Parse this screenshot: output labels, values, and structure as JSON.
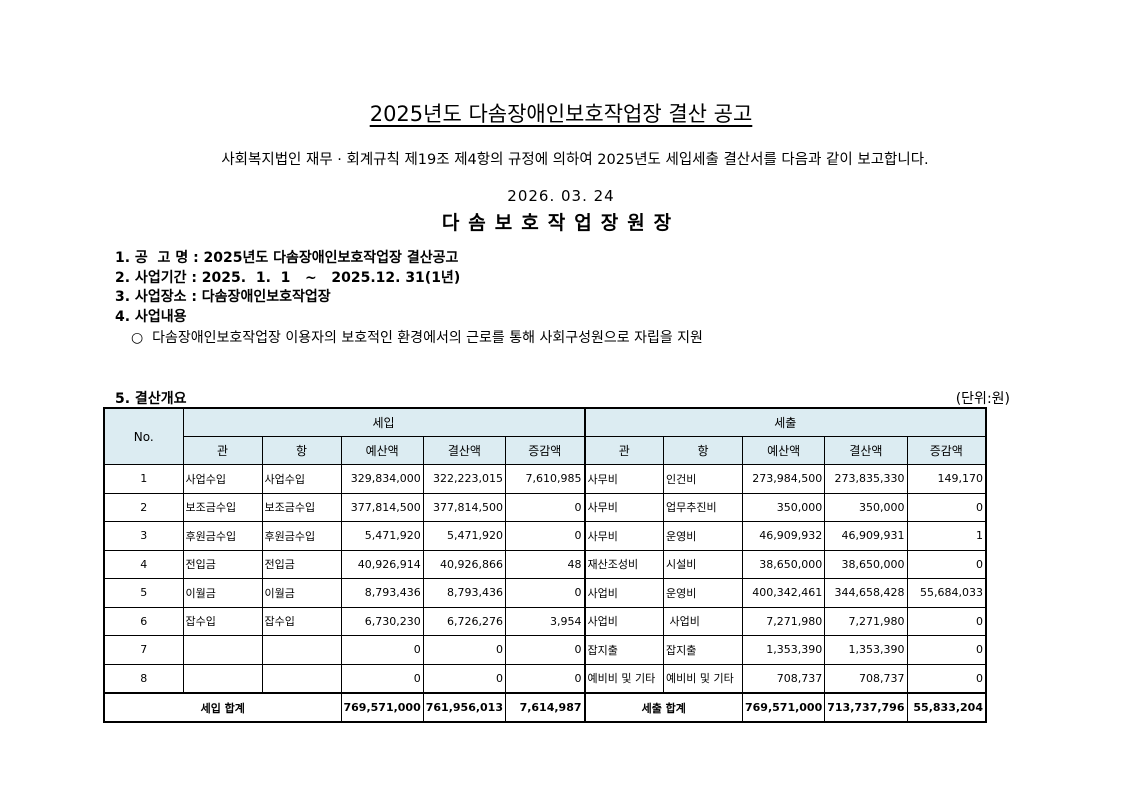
{
  "title": "2025년도 다솜장애인보호작업장 결산 공고",
  "intro": "사회복지법인 재무 · 회계규칙 제19조 제4항의 규정에 의하여 2025년도 세입세출 결산서를 다음과 같이 보고합니다.",
  "date": "2026. 03. 24",
  "org": "다솜보호작업장원장",
  "items": [
    "1. 공  고 명 : 2025년도 다솜장애인보호작업장 결산공고",
    "2. 사업기간 : 2025.  1.  1   ~   2025.12. 31(1년)",
    "3. 사업장소 : 다솜장애인보호작업장",
    "4. 사업내용"
  ],
  "bullet": "○  다솜장애인보호작업장 이용자의 보호적인 환경에서의 근로를 통해 사회구성원으로 자립을 지원",
  "section": "5. 결산개요",
  "unit": "(단위:원)",
  "table": {
    "no": "No.",
    "income": "세입",
    "expense": "세출",
    "cols": [
      "관",
      "항",
      "예산액",
      "결산액",
      "증감액",
      "관",
      "항",
      "예산액",
      "결산액",
      "증감액"
    ],
    "rows": [
      [
        "1",
        "사업수입",
        "사업수입",
        "329,834,000",
        "322,223,015",
        "7,610,985",
        "사무비",
        "인건비",
        "273,984,500",
        "273,835,330",
        "149,170"
      ],
      [
        "2",
        "보조금수입",
        "보조금수입",
        "377,814,500",
        "377,814,500",
        "0",
        "사무비",
        "업무추진비",
        "350,000",
        "350,000",
        "0"
      ],
      [
        "3",
        "후원금수입",
        "후원금수입",
        "5,471,920",
        "5,471,920",
        "0",
        "사무비",
        "운영비",
        "46,909,932",
        "46,909,931",
        "1"
      ],
      [
        "4",
        "전입금",
        "전입금",
        "40,926,914",
        "40,926,866",
        "48",
        "재산조성비",
        "시설비",
        "38,650,000",
        "38,650,000",
        "0"
      ],
      [
        "5",
        "이월금",
        "이월금",
        "8,793,436",
        "8,793,436",
        "0",
        "사업비",
        "운영비",
        "400,342,461",
        "344,658,428",
        "55,684,033"
      ],
      [
        "6",
        "잡수입",
        "잡수입",
        "6,730,230",
        "6,726,276",
        "3,954",
        "사업비",
        " 사업비",
        "7,271,980",
        "7,271,980",
        "0"
      ],
      [
        "7",
        "",
        "",
        "0",
        "0",
        "0",
        "잡지출",
        "잡지출",
        "1,353,390",
        "1,353,390",
        "0"
      ],
      [
        "8",
        "",
        "",
        "0",
        "0",
        "0",
        "예비비 및 기타",
        "예비비 및 기타",
        "708,737",
        "708,737",
        "0"
      ]
    ],
    "total": {
      "income_label": "세입 합계",
      "income": [
        "769,571,000",
        "761,956,013",
        "7,614,987"
      ],
      "expense_label": "세출 합계",
      "expense": [
        "769,571,000",
        "713,737,796",
        "55,833,204"
      ]
    }
  }
}
